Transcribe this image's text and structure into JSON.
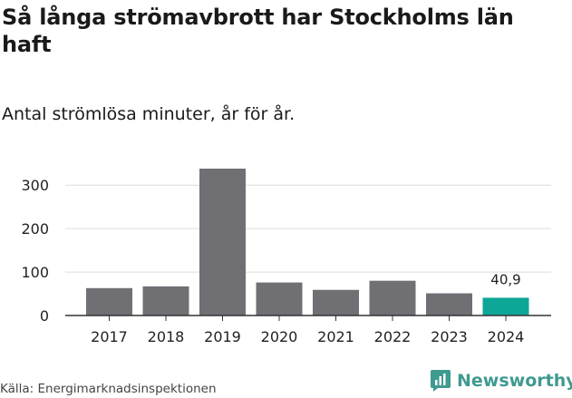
{
  "chart_data": {
    "type": "bar",
    "title": "Så långa strömavbrott har Stockholms län haft",
    "subtitle": "Antal strömlösa minuter, år för år.",
    "categories": [
      "2017",
      "2018",
      "2019",
      "2020",
      "2021",
      "2022",
      "2023",
      "2024"
    ],
    "values": [
      63,
      67,
      338,
      76,
      59,
      80,
      51,
      40.9
    ],
    "highlight_index": 7,
    "data_labels": {
      "7": "40,9"
    },
    "yticks": [
      0,
      100,
      200,
      300
    ],
    "ylim": [
      0,
      338
    ],
    "xlabel": "",
    "ylabel": "",
    "grid": true,
    "bar_color": "#706f74",
    "highlight_color": "#0ea697"
  },
  "footer": {
    "source": "Källa: Energimarknadsinspektionen",
    "brand": "Newsworthy",
    "brand_color": "#3f9a90"
  }
}
